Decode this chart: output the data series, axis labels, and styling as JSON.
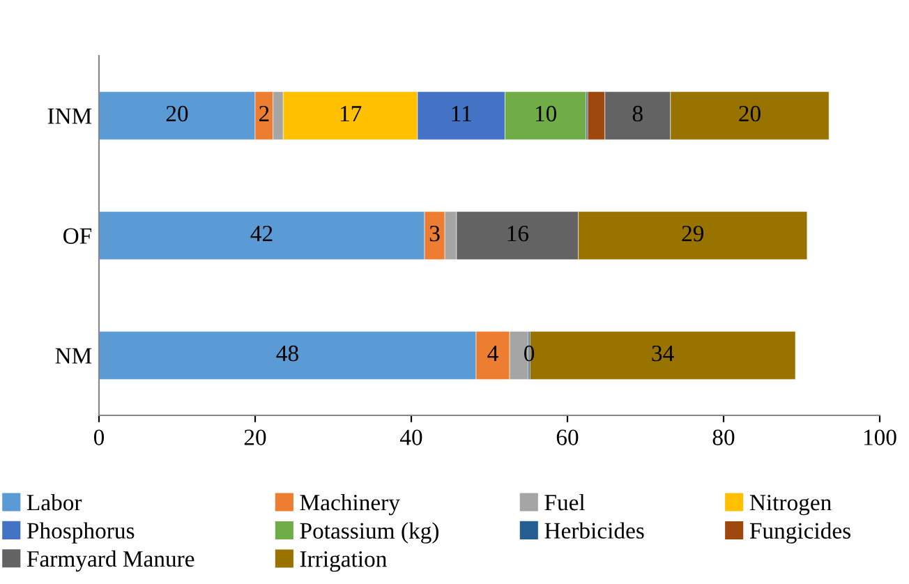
{
  "chart_data": {
    "type": "bar",
    "orientation": "horizontal",
    "stacked": true,
    "categories": [
      "INM",
      "OF",
      "NM"
    ],
    "xlim": [
      0,
      100
    ],
    "xticks": [
      0,
      20,
      40,
      60,
      80,
      100
    ],
    "grid": false,
    "legend": "bottom",
    "series": [
      {
        "name": "Labor",
        "color": "#5b9bd5",
        "values": [
          20.0,
          41.7,
          48.3
        ],
        "value_labels": [
          "20",
          "42",
          "48"
        ]
      },
      {
        "name": "Machinery",
        "color": "#ed7d31",
        "values": [
          2.3,
          2.6,
          4.3
        ],
        "value_labels": [
          "2",
          "3",
          "4"
        ]
      },
      {
        "name": "Fuel",
        "color": "#a5a5a5",
        "values": [
          1.3,
          1.5,
          2.4
        ],
        "value_labels": [
          null,
          null,
          null
        ]
      },
      {
        "name": "Nitrogen",
        "color": "#ffc000",
        "values": [
          17.2,
          null,
          null
        ],
        "value_labels": [
          "17",
          null,
          null
        ]
      },
      {
        "name": "Phosphorus",
        "color": "#4472c4",
        "values": [
          11.2,
          null,
          null
        ],
        "value_labels": [
          "11",
          null,
          null
        ]
      },
      {
        "name": "Potassium (kg)",
        "color": "#70ad47",
        "values": [
          10.4,
          null,
          null
        ],
        "value_labels": [
          "10",
          null,
          null
        ]
      },
      {
        "name": "Herbicides",
        "color": "#255e91",
        "values": [
          0.2,
          null,
          0.2
        ],
        "value_labels": [
          null,
          null,
          "0"
        ]
      },
      {
        "name": "Fungicides",
        "color": "#9e480e",
        "values": [
          2.2,
          null,
          null
        ],
        "value_labels": [
          null,
          null,
          null
        ]
      },
      {
        "name": "Farmyard Manure",
        "color": "#636363",
        "values": [
          8.4,
          15.6,
          null
        ],
        "value_labels": [
          "8",
          "16",
          null
        ]
      },
      {
        "name": "Irrigation",
        "color": "#997300",
        "values": [
          20.3,
          29.3,
          34.0
        ],
        "value_labels": [
          "20",
          "29",
          "34"
        ]
      }
    ]
  }
}
